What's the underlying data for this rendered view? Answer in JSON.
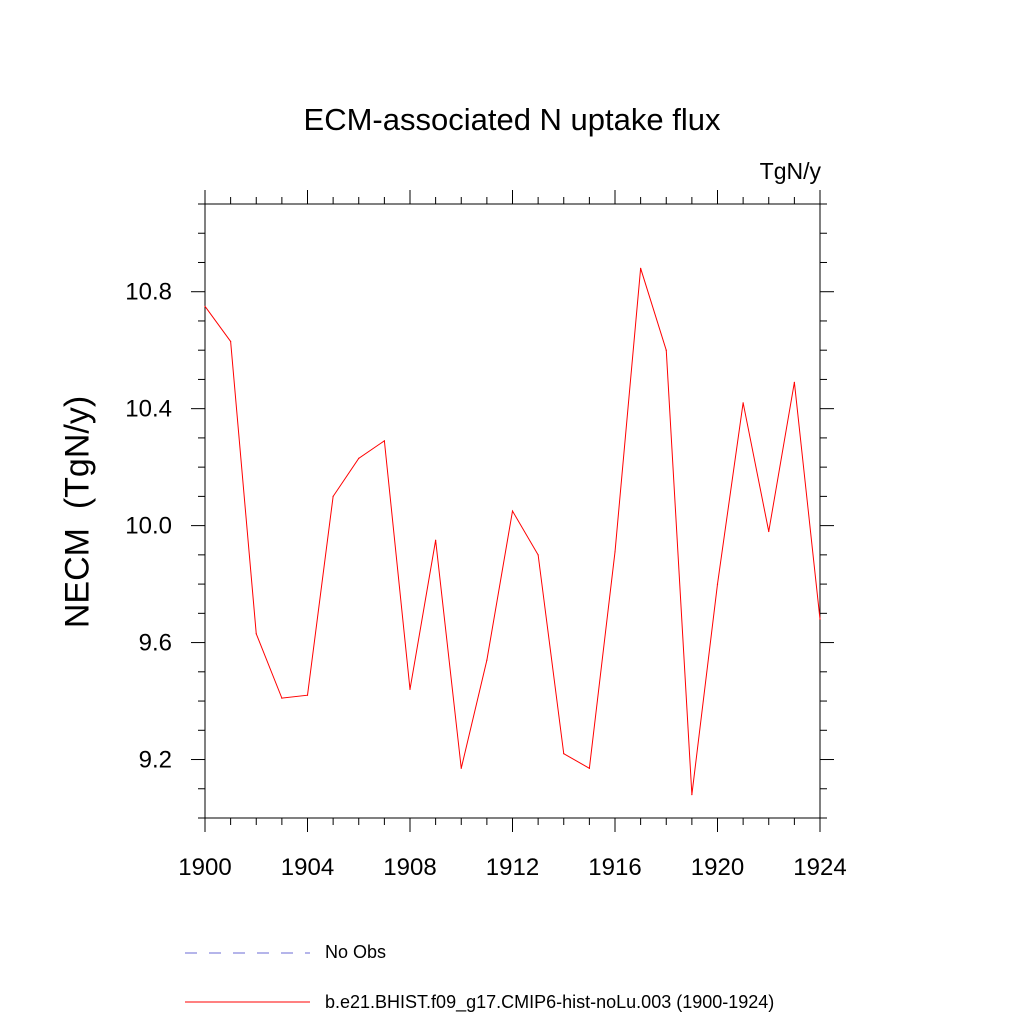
{
  "chart_data": {
    "type": "line",
    "title": "ECM-associated N uptake flux",
    "units_label": "TgN/y",
    "ylabel": "NECM  (TgN/y)",
    "xlabel": "",
    "xlim": [
      1900,
      1924
    ],
    "ylim": [
      9.0,
      11.1
    ],
    "xticks": [
      1900,
      1904,
      1908,
      1912,
      1916,
      1920,
      1924
    ],
    "xtick_labels": [
      "1900",
      "1904",
      "1908",
      "1912",
      "1916",
      "1920",
      "1924"
    ],
    "yticks": [
      9.2,
      9.6,
      10.0,
      10.4,
      10.8
    ],
    "ytick_labels": [
      "9.2",
      "9.6",
      "10.0",
      "10.4",
      "10.8"
    ],
    "x": [
      1900,
      1901,
      1902,
      1903,
      1904,
      1905,
      1906,
      1907,
      1908,
      1909,
      1910,
      1911,
      1912,
      1913,
      1914,
      1915,
      1916,
      1917,
      1918,
      1919,
      1920,
      1921,
      1922,
      1923,
      1924
    ],
    "series": [
      {
        "name": "b.e21.BHIST.f09_g17.CMIP6-hist-noLu.003 (1900-1924)",
        "color": "#ff0000",
        "style": "solid",
        "values": [
          10.75,
          10.63,
          9.63,
          9.41,
          9.42,
          10.1,
          10.23,
          10.29,
          9.44,
          9.95,
          9.17,
          9.54,
          10.05,
          9.9,
          9.22,
          9.17,
          9.91,
          10.88,
          10.6,
          9.08,
          9.8,
          10.42,
          9.98,
          10.49,
          9.68
        ]
      }
    ],
    "legend": [
      {
        "label": "No Obs",
        "color": "#6b6bd6",
        "style": "dashed"
      },
      {
        "label": "b.e21.BHIST.f09_g17.CMIP6-hist-noLu.003 (1900-1924)",
        "color": "#ff0000",
        "style": "solid"
      }
    ],
    "legend_position": "bottom",
    "grid": false
  }
}
